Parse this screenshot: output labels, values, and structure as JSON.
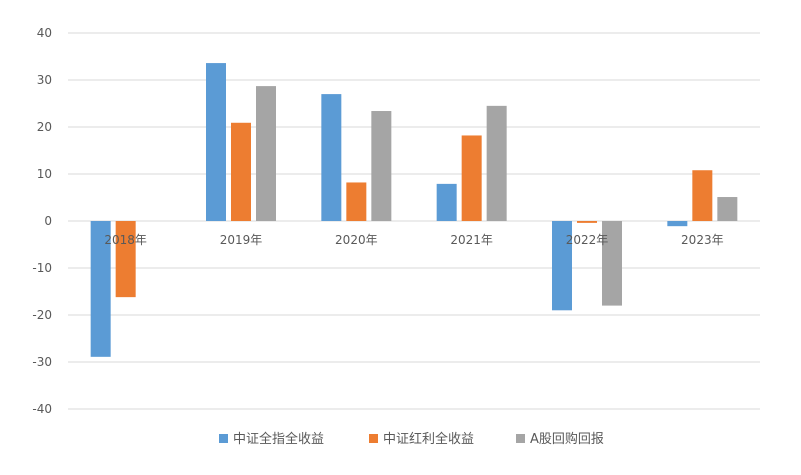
{
  "chart_data": {
    "type": "bar",
    "title": "",
    "xlabel": "",
    "ylabel": "",
    "categories": [
      "2018年",
      "2019年",
      "2020年",
      "2021年",
      "2022年",
      "2023年"
    ],
    "series": [
      {
        "name": "中证全指全收益",
        "color": "#5B9BD5",
        "values": [
          -28.9,
          33.6,
          27.0,
          7.9,
          -19.0,
          -1.1
        ]
      },
      {
        "name": "中证红利全收益",
        "color": "#ED7D31",
        "values": [
          -16.2,
          20.9,
          8.2,
          18.2,
          -0.4,
          10.8
        ]
      },
      {
        "name": "A股回购回报",
        "color": "#A5A5A5",
        "values": [
          0,
          28.7,
          23.4,
          24.5,
          -18.0,
          5.1
        ]
      }
    ],
    "ylim": [
      -40,
      40
    ],
    "yticks": [
      40,
      30,
      20,
      10,
      0,
      -10,
      -20,
      -30,
      -40
    ],
    "grid": true,
    "legend_position": "bottom"
  }
}
